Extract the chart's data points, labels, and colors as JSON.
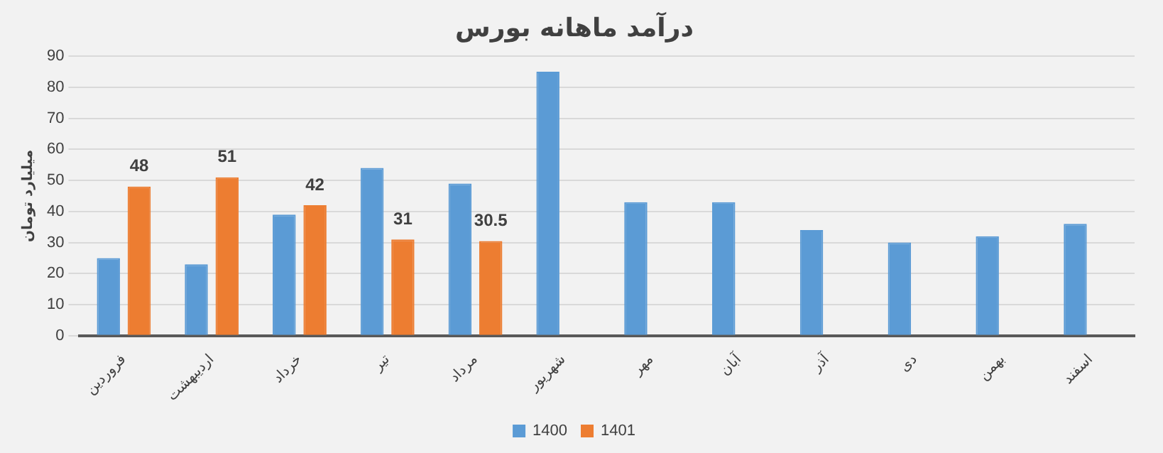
{
  "chart_data": {
    "type": "bar",
    "title": "درآمد ماهانه بورس",
    "ylabel": "میلیارد تومان",
    "categories": [
      "فروردین",
      "اردیبهشت",
      "خرداد",
      "تیر",
      "مرداد",
      "شهریور",
      "مهر",
      "آبان",
      "آذر",
      "دی",
      "بهمن",
      "اسفند"
    ],
    "series": [
      {
        "name": "1400",
        "color": "#5b9bd5",
        "values": [
          25,
          23,
          39,
          54,
          49,
          85,
          43,
          43,
          34,
          30,
          32,
          36
        ]
      },
      {
        "name": "1401",
        "color": "#ed7d31",
        "values": [
          48,
          51,
          42,
          31,
          30.5,
          null,
          null,
          null,
          null,
          null,
          null,
          null
        ],
        "value_labels": [
          "48",
          "51",
          "42",
          "31",
          "30.5",
          null,
          null,
          null,
          null,
          null,
          null,
          null
        ]
      }
    ],
    "ylim": [
      0,
      90
    ],
    "yticks": [
      0,
      10,
      20,
      30,
      40,
      50,
      60,
      70,
      80,
      90
    ],
    "grid": "y",
    "legend": "bottom"
  }
}
